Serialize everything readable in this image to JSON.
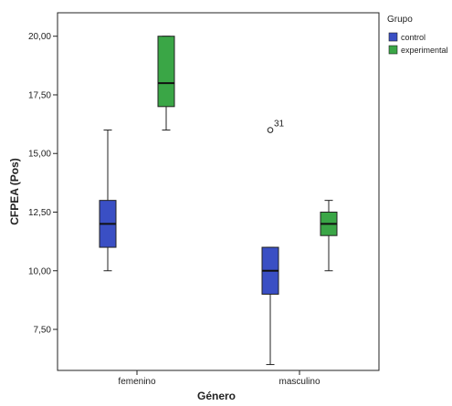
{
  "chart_data": {
    "type": "boxplot",
    "title": "",
    "xlabel": "Género",
    "ylabel": "CFPEA (Pos)",
    "ylim": [
      5.75,
      21.0
    ],
    "yticks": [
      7.5,
      10.0,
      12.5,
      15.0,
      17.5,
      20.0
    ],
    "ytick_labels": [
      "7,50",
      "10,00",
      "12,50",
      "15,00",
      "17,50",
      "20,00"
    ],
    "categories": [
      "femenino",
      "masculino"
    ],
    "legend": {
      "title": "Grupo",
      "position": "right",
      "entries": [
        "control",
        "experimental"
      ]
    },
    "colors": {
      "control": "#3a4fc4",
      "experimental": "#3aa646"
    },
    "series": [
      {
        "name": "control",
        "boxes": [
          {
            "category": "femenino",
            "min": 10.0,
            "q1": 11.0,
            "median": 12.0,
            "q3": 13.0,
            "max": 16.0
          },
          {
            "category": "masculino",
            "min": 6.0,
            "q1": 9.0,
            "median": 10.0,
            "q3": 11.0,
            "max": 11.0,
            "outliers": [
              {
                "value": 16.0,
                "label": "31"
              }
            ]
          }
        ]
      },
      {
        "name": "experimental",
        "boxes": [
          {
            "category": "femenino",
            "min": 16.0,
            "q1": 17.0,
            "median": 18.0,
            "q3": 20.0,
            "max": 20.0
          },
          {
            "category": "masculino",
            "min": 10.0,
            "q1": 11.5,
            "median": 12.0,
            "q3": 12.5,
            "max": 13.0
          }
        ]
      }
    ]
  }
}
